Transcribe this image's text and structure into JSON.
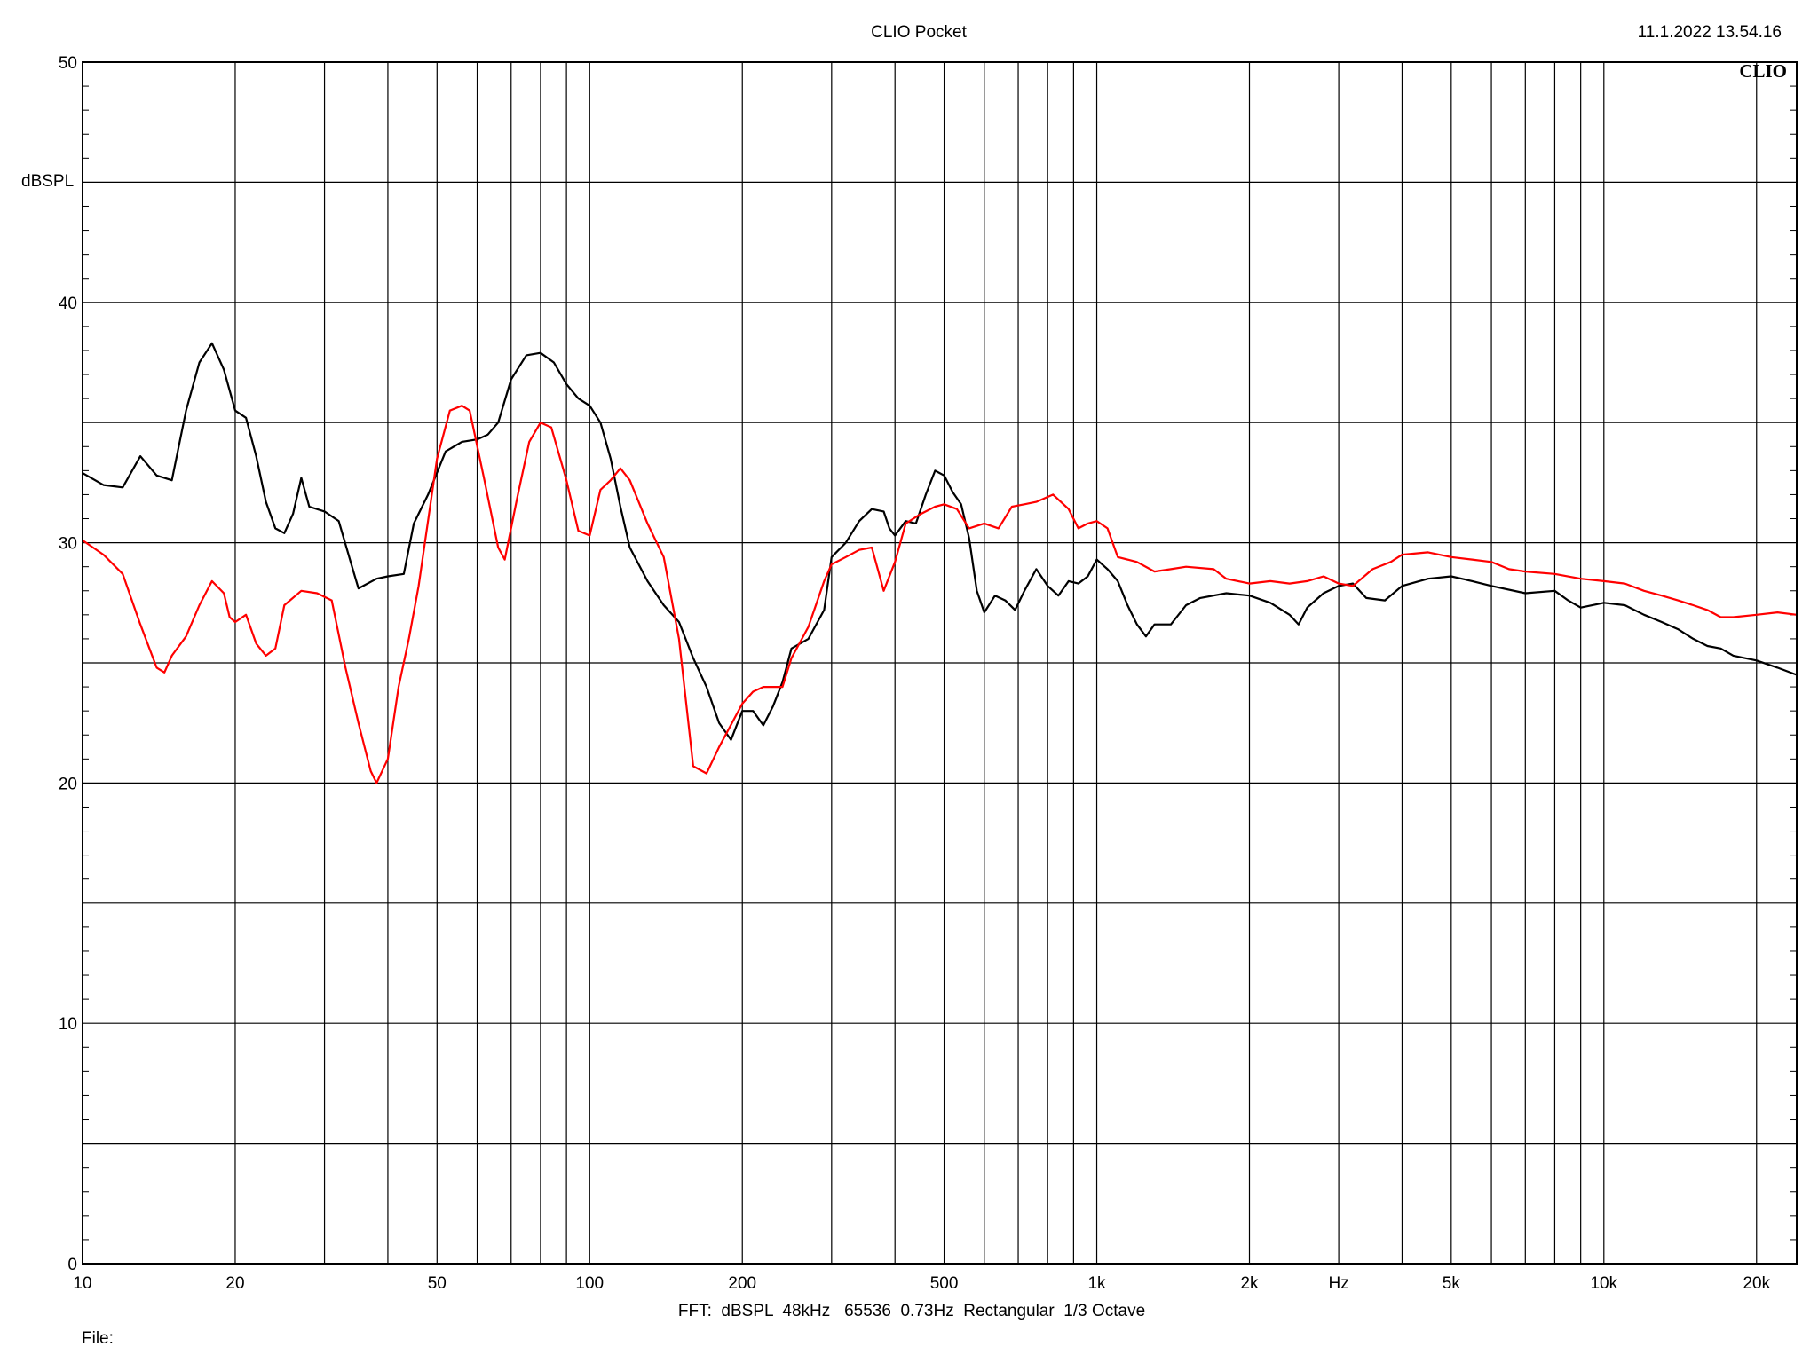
{
  "header": {
    "app_title": "CLIO Pocket",
    "timestamp": "11.1.2022 13.54.16",
    "logo_text": "CLIO"
  },
  "footer": {
    "settings_line": "FFT:  dBSPL  48kHz   65536  0.73Hz  Rectangular  1/3 Octave",
    "file_label": "File:"
  },
  "chart_data": {
    "type": "line",
    "title": "CLIO Pocket",
    "xlabel": "Hz",
    "ylabel": "dBSPL",
    "x_scale": "log",
    "xlim": [
      10,
      24000
    ],
    "ylim": [
      0,
      50
    ],
    "grid": true,
    "x_tick_labels": [
      {
        "value": 10,
        "label": "10"
      },
      {
        "value": 20,
        "label": "20"
      },
      {
        "value": 50,
        "label": "50"
      },
      {
        "value": 100,
        "label": "100"
      },
      {
        "value": 200,
        "label": "200"
      },
      {
        "value": 500,
        "label": "500"
      },
      {
        "value": 1000,
        "label": "1k"
      },
      {
        "value": 2000,
        "label": "2k"
      },
      {
        "value": 5000,
        "label": "5k"
      },
      {
        "value": 10000,
        "label": "10k"
      },
      {
        "value": 20000,
        "label": "20k"
      }
    ],
    "y_tick_labels": [
      {
        "value": 0,
        "label": "0"
      },
      {
        "value": 10,
        "label": "10"
      },
      {
        "value": 20,
        "label": "20"
      },
      {
        "value": 30,
        "label": "30"
      },
      {
        "value": 40,
        "label": "40"
      },
      {
        "value": 50,
        "label": "50"
      }
    ],
    "series": [
      {
        "color": "#000000",
        "points": [
          [
            10,
            32.9
          ],
          [
            11,
            32.4
          ],
          [
            12,
            32.3
          ],
          [
            13,
            33.6
          ],
          [
            14,
            32.8
          ],
          [
            15,
            32.6
          ],
          [
            16,
            35.5
          ],
          [
            17,
            37.5
          ],
          [
            18,
            38.3
          ],
          [
            19,
            37.2
          ],
          [
            20,
            35.5
          ],
          [
            21,
            35.2
          ],
          [
            22,
            33.6
          ],
          [
            23,
            31.7
          ],
          [
            24,
            30.6
          ],
          [
            25,
            30.4
          ],
          [
            26,
            31.2
          ],
          [
            27,
            32.7
          ],
          [
            28,
            31.5
          ],
          [
            30,
            31.3
          ],
          [
            32,
            30.9
          ],
          [
            34,
            29.0
          ],
          [
            35,
            28.1
          ],
          [
            38,
            28.5
          ],
          [
            40,
            28.6
          ],
          [
            43,
            28.7
          ],
          [
            45,
            30.8
          ],
          [
            48,
            32.0
          ],
          [
            52,
            33.8
          ],
          [
            56,
            34.2
          ],
          [
            60,
            34.3
          ],
          [
            63,
            34.5
          ],
          [
            66,
            35.0
          ],
          [
            70,
            36.8
          ],
          [
            75,
            37.8
          ],
          [
            80,
            37.9
          ],
          [
            85,
            37.5
          ],
          [
            90,
            36.6
          ],
          [
            95,
            36.0
          ],
          [
            100,
            35.7
          ],
          [
            105,
            35.0
          ],
          [
            110,
            33.5
          ],
          [
            115,
            31.5
          ],
          [
            120,
            29.8
          ],
          [
            130,
            28.4
          ],
          [
            140,
            27.4
          ],
          [
            150,
            26.7
          ],
          [
            160,
            25.2
          ],
          [
            170,
            24.0
          ],
          [
            180,
            22.5
          ],
          [
            190,
            21.8
          ],
          [
            200,
            23.0
          ],
          [
            210,
            23.0
          ],
          [
            220,
            22.4
          ],
          [
            230,
            23.2
          ],
          [
            240,
            24.2
          ],
          [
            250,
            25.6
          ],
          [
            270,
            26.0
          ],
          [
            290,
            27.2
          ],
          [
            300,
            29.4
          ],
          [
            320,
            30.0
          ],
          [
            340,
            30.9
          ],
          [
            360,
            31.4
          ],
          [
            380,
            31.3
          ],
          [
            390,
            30.6
          ],
          [
            400,
            30.3
          ],
          [
            420,
            30.9
          ],
          [
            440,
            30.8
          ],
          [
            460,
            32.0
          ],
          [
            480,
            33.0
          ],
          [
            500,
            32.8
          ],
          [
            520,
            32.1
          ],
          [
            540,
            31.6
          ],
          [
            560,
            30.2
          ],
          [
            580,
            28.0
          ],
          [
            600,
            27.1
          ],
          [
            630,
            27.8
          ],
          [
            660,
            27.6
          ],
          [
            690,
            27.2
          ],
          [
            720,
            28.0
          ],
          [
            760,
            28.9
          ],
          [
            800,
            28.2
          ],
          [
            840,
            27.8
          ],
          [
            880,
            28.4
          ],
          [
            920,
            28.3
          ],
          [
            960,
            28.6
          ],
          [
            1000,
            29.3
          ],
          [
            1050,
            28.9
          ],
          [
            1100,
            28.4
          ],
          [
            1150,
            27.4
          ],
          [
            1200,
            26.6
          ],
          [
            1250,
            26.1
          ],
          [
            1300,
            26.6
          ],
          [
            1400,
            26.6
          ],
          [
            1500,
            27.4
          ],
          [
            1600,
            27.7
          ],
          [
            1800,
            27.9
          ],
          [
            2000,
            27.8
          ],
          [
            2200,
            27.5
          ],
          [
            2400,
            27.0
          ],
          [
            2500,
            26.6
          ],
          [
            2600,
            27.3
          ],
          [
            2800,
            27.9
          ],
          [
            3000,
            28.2
          ],
          [
            3200,
            28.3
          ],
          [
            3400,
            27.7
          ],
          [
            3700,
            27.6
          ],
          [
            4000,
            28.2
          ],
          [
            4500,
            28.5
          ],
          [
            5000,
            28.6
          ],
          [
            5500,
            28.4
          ],
          [
            6000,
            28.2
          ],
          [
            7000,
            27.9
          ],
          [
            8000,
            28.0
          ],
          [
            8500,
            27.6
          ],
          [
            9000,
            27.3
          ],
          [
            10000,
            27.5
          ],
          [
            11000,
            27.4
          ],
          [
            12000,
            27.0
          ],
          [
            13000,
            26.7
          ],
          [
            14000,
            26.4
          ],
          [
            15000,
            26.0
          ],
          [
            16000,
            25.7
          ],
          [
            17000,
            25.6
          ],
          [
            18000,
            25.3
          ],
          [
            20000,
            25.1
          ],
          [
            22000,
            24.8
          ],
          [
            24000,
            24.5
          ]
        ]
      },
      {
        "color": "#ff0000",
        "points": [
          [
            10,
            30.1
          ],
          [
            11,
            29.5
          ],
          [
            12,
            28.7
          ],
          [
            13,
            26.6
          ],
          [
            14,
            24.8
          ],
          [
            14.5,
            24.6
          ],
          [
            15,
            25.3
          ],
          [
            16,
            26.1
          ],
          [
            17,
            27.4
          ],
          [
            18,
            28.4
          ],
          [
            19,
            27.9
          ],
          [
            19.5,
            26.9
          ],
          [
            20,
            26.7
          ],
          [
            21,
            27.0
          ],
          [
            22,
            25.8
          ],
          [
            23,
            25.3
          ],
          [
            24,
            25.6
          ],
          [
            25,
            27.4
          ],
          [
            27,
            28.0
          ],
          [
            29,
            27.9
          ],
          [
            31,
            27.6
          ],
          [
            33,
            24.8
          ],
          [
            35,
            22.5
          ],
          [
            37,
            20.5
          ],
          [
            38,
            20.0
          ],
          [
            40,
            21.0
          ],
          [
            42,
            24.0
          ],
          [
            44,
            26.0
          ],
          [
            46,
            28.2
          ],
          [
            50,
            33.5
          ],
          [
            53,
            35.5
          ],
          [
            56,
            35.7
          ],
          [
            58,
            35.5
          ],
          [
            62,
            32.6
          ],
          [
            66,
            29.8
          ],
          [
            68,
            29.3
          ],
          [
            72,
            31.9
          ],
          [
            76,
            34.2
          ],
          [
            80,
            35.0
          ],
          [
            84,
            34.8
          ],
          [
            90,
            32.6
          ],
          [
            95,
            30.5
          ],
          [
            100,
            30.3
          ],
          [
            105,
            32.2
          ],
          [
            110,
            32.6
          ],
          [
            115,
            33.1
          ],
          [
            120,
            32.6
          ],
          [
            130,
            30.8
          ],
          [
            140,
            29.4
          ],
          [
            150,
            26.0
          ],
          [
            160,
            20.7
          ],
          [
            170,
            20.4
          ],
          [
            180,
            21.5
          ],
          [
            200,
            23.3
          ],
          [
            210,
            23.8
          ],
          [
            220,
            24.0
          ],
          [
            240,
            24.0
          ],
          [
            250,
            25.2
          ],
          [
            270,
            26.5
          ],
          [
            290,
            28.4
          ],
          [
            300,
            29.1
          ],
          [
            320,
            29.4
          ],
          [
            340,
            29.7
          ],
          [
            360,
            29.8
          ],
          [
            380,
            28.0
          ],
          [
            400,
            29.2
          ],
          [
            420,
            30.8
          ],
          [
            450,
            31.2
          ],
          [
            480,
            31.5
          ],
          [
            500,
            31.6
          ],
          [
            530,
            31.4
          ],
          [
            560,
            30.6
          ],
          [
            600,
            30.8
          ],
          [
            640,
            30.6
          ],
          [
            680,
            31.5
          ],
          [
            720,
            31.6
          ],
          [
            760,
            31.7
          ],
          [
            820,
            32.0
          ],
          [
            880,
            31.4
          ],
          [
            920,
            30.6
          ],
          [
            960,
            30.8
          ],
          [
            1000,
            30.9
          ],
          [
            1050,
            30.6
          ],
          [
            1100,
            29.4
          ],
          [
            1200,
            29.2
          ],
          [
            1300,
            28.8
          ],
          [
            1400,
            28.9
          ],
          [
            1500,
            29.0
          ],
          [
            1700,
            28.9
          ],
          [
            1800,
            28.5
          ],
          [
            2000,
            28.3
          ],
          [
            2200,
            28.4
          ],
          [
            2400,
            28.3
          ],
          [
            2600,
            28.4
          ],
          [
            2800,
            28.6
          ],
          [
            3000,
            28.3
          ],
          [
            3200,
            28.2
          ],
          [
            3500,
            28.9
          ],
          [
            3800,
            29.2
          ],
          [
            4000,
            29.5
          ],
          [
            4500,
            29.6
          ],
          [
            5000,
            29.4
          ],
          [
            5500,
            29.3
          ],
          [
            6000,
            29.2
          ],
          [
            6500,
            28.9
          ],
          [
            7000,
            28.8
          ],
          [
            8000,
            28.7
          ],
          [
            9000,
            28.5
          ],
          [
            10000,
            28.4
          ],
          [
            11000,
            28.3
          ],
          [
            12000,
            28.0
          ],
          [
            13000,
            27.8
          ],
          [
            14000,
            27.6
          ],
          [
            15000,
            27.4
          ],
          [
            16000,
            27.2
          ],
          [
            17000,
            26.9
          ],
          [
            18000,
            26.9
          ],
          [
            20000,
            27.0
          ],
          [
            22000,
            27.1
          ],
          [
            24000,
            27.0
          ]
        ]
      }
    ]
  }
}
